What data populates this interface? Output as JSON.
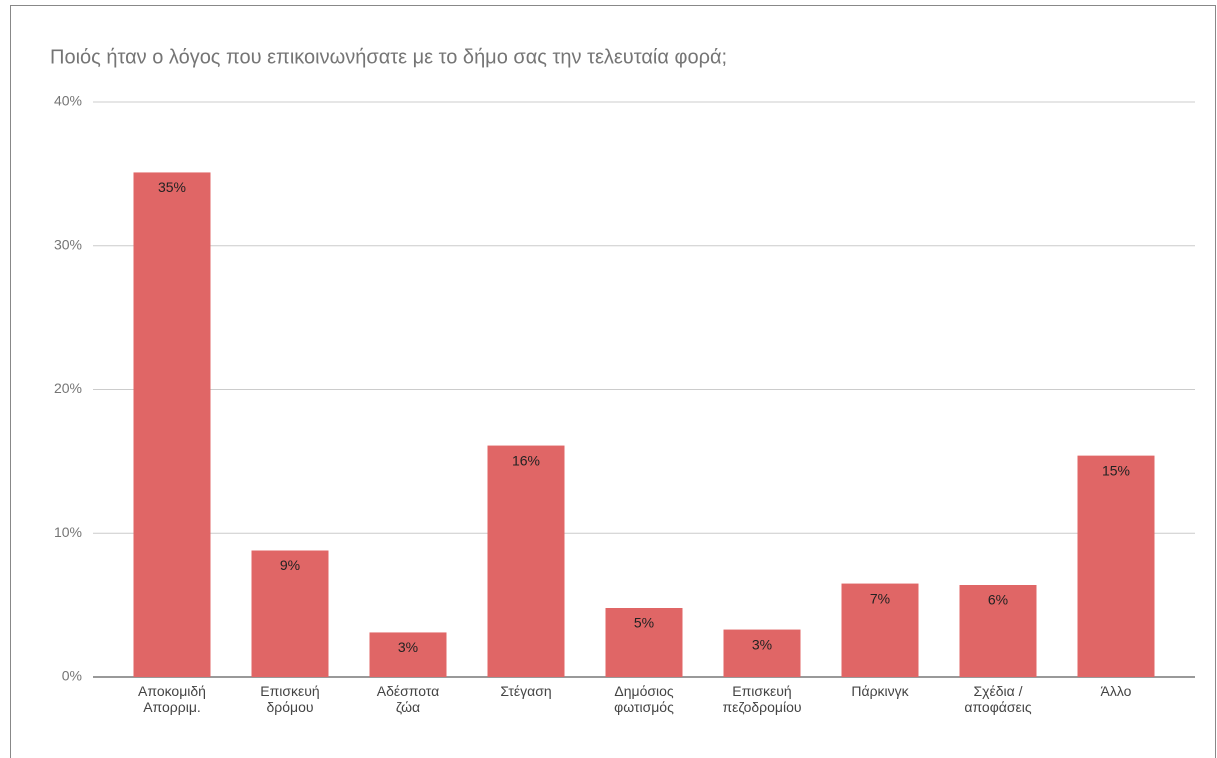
{
  "chart_data": {
    "type": "bar",
    "title": "Ποιός ήταν ο λόγος που επικοινωνήσατε με το δήμο σας την τελευταία φορά;",
    "categories": [
      "Αποκομιδή\nΑπορριμ.",
      "Επισκευή\nδρόμου",
      "Αδέσποτα\nζώα",
      "Στέγαση",
      "Δημόσιος\nφωτισμός",
      "Επισκευή\nπεζοδρομίου",
      "Πάρκινγκ",
      "Σχέδια /\nαποφάσεις",
      "Άλλο"
    ],
    "values": [
      35.1,
      8.8,
      3.1,
      16.1,
      4.8,
      3.3,
      6.5,
      6.4,
      15.4
    ],
    "value_labels": [
      "35%",
      "9%",
      "3%",
      "16%",
      "5%",
      "3%",
      "7%",
      "6%",
      "15%"
    ],
    "color": "#e06666",
    "ylim": [
      0,
      40
    ],
    "yticks": [
      {
        "value": 0,
        "label": "0%"
      },
      {
        "value": 10,
        "label": "10%"
      },
      {
        "value": 20,
        "label": "20%"
      },
      {
        "value": 30,
        "label": "30%"
      },
      {
        "value": 40,
        "label": "40%"
      }
    ],
    "grid": true
  }
}
